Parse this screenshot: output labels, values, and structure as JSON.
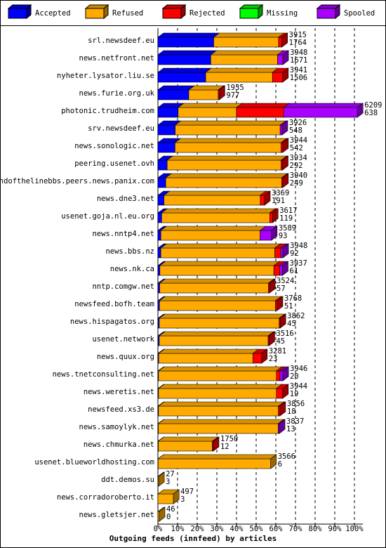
{
  "chart_data": {
    "type": "bar",
    "title": "Outgoing feeds (innfeed) by articles",
    "categories": [
      "srl.newsdeef.eu",
      "news.netfront.net",
      "nyheter.lysator.liu.se",
      "news.furie.org.uk",
      "photonic.trudheim.com",
      "srv.newsdeef.eu",
      "news.sonologic.net",
      "peering.usenet.ovh",
      "endofthelinebbs.peers.news.panix.com",
      "news.dne3.net",
      "usenet.goja.nl.eu.org",
      "news.nntp4.net",
      "news.bbs.nz",
      "news.nk.ca",
      "nntp.comgw.net",
      "newsfeed.bofh.team",
      "news.hispagatos.org",
      "usenet.network",
      "news.quux.org",
      "news.tnetconsulting.net",
      "news.weretis.net",
      "newsfeed.xs3.de",
      "news.samoylyk.net",
      "news.chmurka.net",
      "usenet.blueworldhosting.com",
      "ddt.demos.su",
      "news.corradoroberto.it",
      "news.gletsjer.net"
    ],
    "totals": [
      3915,
      3948,
      3941,
      1935,
      6209,
      3926,
      3944,
      3934,
      3940,
      3369,
      3617,
      3589,
      3948,
      3937,
      3524,
      3768,
      3862,
      3516,
      3281,
      3946,
      3944,
      3856,
      3837,
      1750,
      3566,
      27,
      497,
      46
    ],
    "accepted_counts": [
      1764,
      1671,
      1506,
      977,
      638,
      548,
      542,
      292,
      249,
      191,
      119,
      93,
      92,
      61,
      57,
      51,
      45,
      45,
      23,
      20,
      19,
      18,
      13,
      12,
      6,
      3,
      3,
      0
    ],
    "series": [
      {
        "name": "Accepted",
        "color": "#0000ff",
        "values": [
          28.4,
          26.9,
          24.3,
          15.7,
          10.3,
          8.8,
          8.7,
          4.7,
          4.0,
          3.1,
          1.9,
          1.5,
          1.5,
          1.0,
          0.9,
          0.8,
          0.7,
          0.7,
          0.4,
          0.3,
          0.3,
          0.3,
          0.2,
          0.2,
          0.1,
          0,
          0,
          0
        ]
      },
      {
        "name": "Refused",
        "color": "#ffaa00",
        "values": [
          33,
          34,
          34,
          15,
          29.7,
          53.4,
          54,
          58,
          59,
          49,
          55,
          50.5,
          58,
          58,
          55.4,
          59,
          61,
          55.4,
          48,
          60,
          60,
          61,
          61,
          27.5,
          57.3,
          0.4,
          7.9,
          0.7
        ]
      },
      {
        "name": "Rejected",
        "color": "#ff0000",
        "values": [
          1.7,
          0,
          5.2,
          0.5,
          24,
          0,
          0.8,
          0.7,
          0.5,
          2.2,
          1.4,
          0,
          3,
          3,
          0.5,
          0.9,
          0.5,
          0.5,
          4.4,
          1.8,
          3.2,
          0.8,
          0,
          0.5,
          0,
          0,
          0,
          0
        ]
      },
      {
        "name": "Missing",
        "color": "#00ff00",
        "values": [
          0,
          0,
          0,
          0,
          0,
          0,
          0,
          0,
          0,
          0,
          0,
          0,
          0,
          0,
          0,
          0,
          0,
          0,
          0,
          0,
          0,
          0,
          0,
          0,
          0,
          0,
          0,
          0
        ]
      },
      {
        "name": "Spooled",
        "color": "#aa00ff",
        "values": [
          0,
          2.7,
          0,
          0,
          37.5,
          1,
          0,
          0,
          0,
          0,
          0,
          5.8,
          1.1,
          1.4,
          0,
          0,
          0,
          0,
          0,
          1.5,
          0,
          0,
          0.6,
          0,
          0,
          0,
          0,
          0
        ]
      }
    ],
    "xlim": [
      0,
      100
    ],
    "xticks": [
      {
        "value": 0,
        "label": "0%"
      },
      {
        "value": 10,
        "label": "10%"
      },
      {
        "value": 20,
        "label": "20%"
      },
      {
        "value": 30,
        "label": "30%"
      },
      {
        "value": 40,
        "label": "40%"
      },
      {
        "value": 50,
        "label": "50%"
      },
      {
        "value": 60,
        "label": "60%"
      },
      {
        "value": 70,
        "label": "70%"
      },
      {
        "value": 80,
        "label": "80%"
      },
      {
        "value": 90,
        "label": "90%"
      },
      {
        "value": 100,
        "label": "100%"
      }
    ],
    "grid": true
  }
}
